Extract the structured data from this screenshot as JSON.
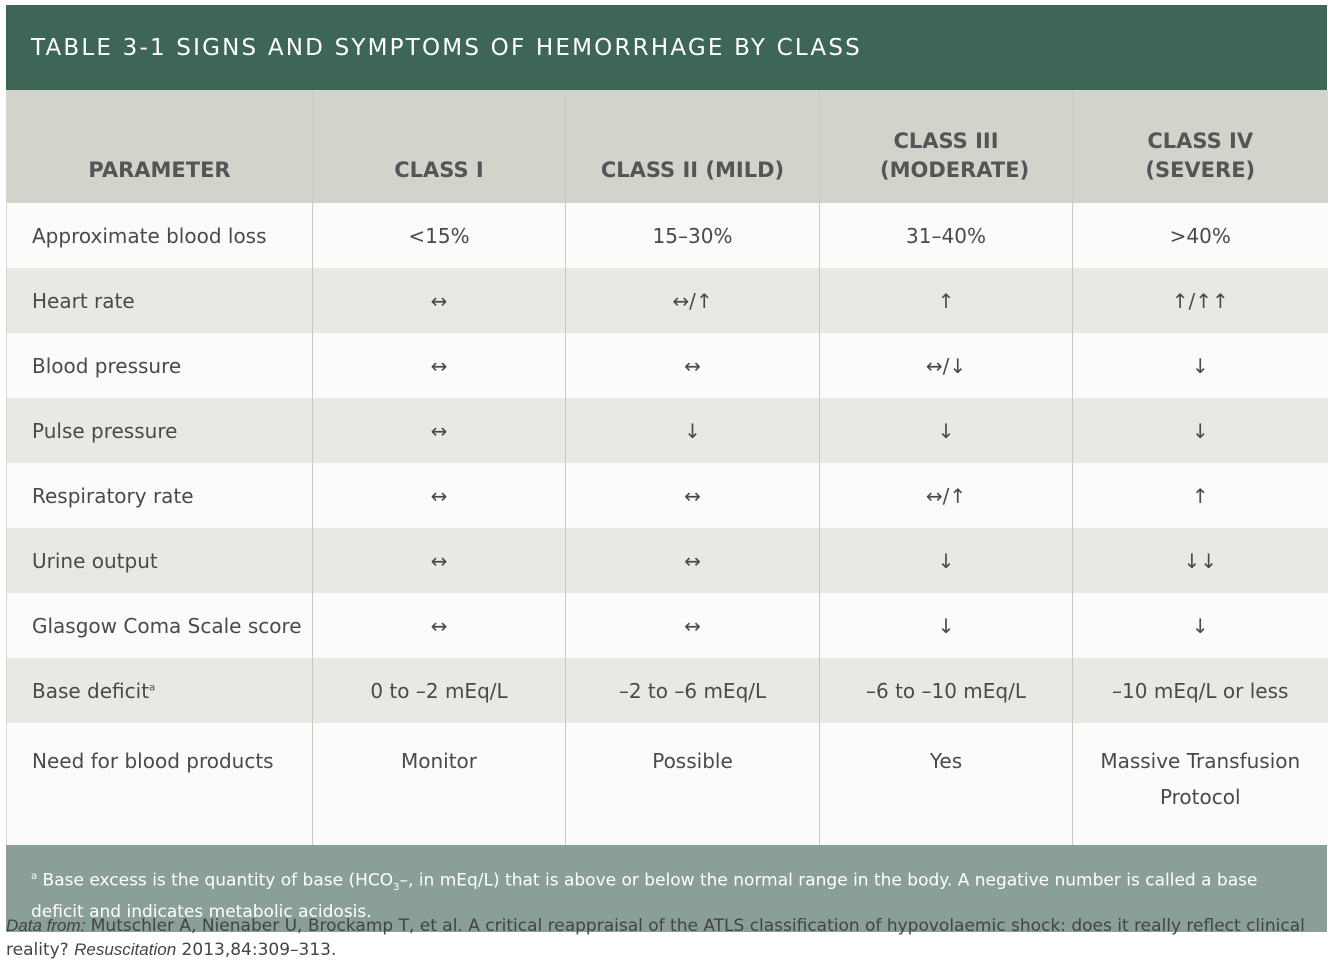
{
  "title": "TABLE 3-1 SIGNS AND SYMPTOMS OF HEMORRHAGE BY CLASS",
  "headers": [
    "PARAMETER",
    "CLASS I",
    "CLASS II (MILD)",
    "CLASS III (MODERATE)",
    "CLASS IV (SEVERE)"
  ],
  "rows": [
    {
      "param": "Approximate blood loss",
      "values": [
        "<15%",
        "15–30%",
        "31–40%",
        ">40%"
      ]
    },
    {
      "param": "Heart rate",
      "values": [
        "↔",
        "↔/↑",
        "↑",
        "↑/↑↑"
      ]
    },
    {
      "param": "Blood pressure",
      "values": [
        "↔",
        "↔",
        "↔/↓",
        "↓"
      ]
    },
    {
      "param": "Pulse pressure",
      "values": [
        "↔",
        "↓",
        "↓",
        "↓"
      ]
    },
    {
      "param": "Respiratory rate",
      "values": [
        "↔",
        "↔",
        "↔/↑",
        "↑"
      ]
    },
    {
      "param": "Urine output",
      "values": [
        "↔",
        "↔",
        "↓",
        "↓↓"
      ]
    },
    {
      "param": "Glasgow Coma Scale score",
      "values": [
        "↔",
        "↔",
        "↓",
        "↓"
      ]
    },
    {
      "param": "Base deficit",
      "sup": "a",
      "values": [
        "0 to –2 mEq/L",
        "–2 to –6 mEq/L",
        "–6 to –10 mEq/L",
        "–10 mEq/L or less"
      ]
    },
    {
      "param": "Need for blood products",
      "values": [
        "Monitor",
        "Possible",
        "Yes",
        "Massive Transfusion Protocol"
      ]
    }
  ],
  "footnote": {
    "marker": "a",
    "pre": " Base excess is the quantity of base (HCO",
    "sub": "3",
    "post": "–, in mEq/L) that is above or below the normal range in the body. A negative number is called a base deficit and indicates metabolic acidosis."
  },
  "citation": {
    "label": "Data from:",
    "pre": " Mutschler A, Nienaber U, Brockamp T, et al. A critical reappraisal of the ATLS classification of hypovolaemic shock: does it really reflect clinical reality? ",
    "journal": "Resuscitation",
    "post": " 2013,84:309–313."
  },
  "colors": {
    "title_bg": "#3d6656",
    "header_bg": "#d4d3cb",
    "row_light": "#fbfbfa",
    "row_dark": "#e8e8e4",
    "footnote_bg": "#8a9f96"
  }
}
